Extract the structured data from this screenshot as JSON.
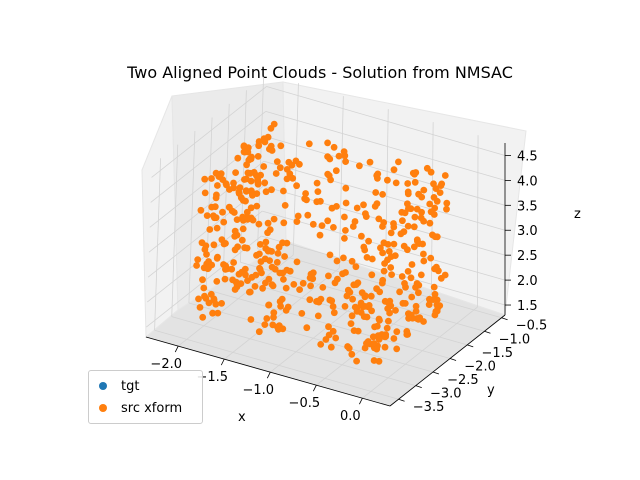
{
  "chart_data": {
    "type": "scatter",
    "title": "Two Aligned Point Clouds - Solution from NMSAC",
    "xlabel": "x",
    "ylabel": "y",
    "zlabel": "z",
    "x_ticks": [
      "−2.0",
      "−1.5",
      "−1.0",
      "−0.5",
      "0.0"
    ],
    "y_ticks": [
      "−3.5",
      "−3.0",
      "−2.5",
      "−2.0",
      "−1.5",
      "−1.0",
      "−0.5"
    ],
    "z_ticks": [
      "1.5",
      "2.0",
      "2.5",
      "3.0",
      "3.5",
      "4.0",
      "4.5"
    ],
    "x_tick_values": [
      -2.0,
      -1.5,
      -1.0,
      -0.5,
      0.0
    ],
    "y_tick_values": [
      -3.5,
      -3.0,
      -2.5,
      -2.0,
      -1.5,
      -1.0,
      -0.5
    ],
    "z_tick_values": [
      1.5,
      2.0,
      2.5,
      3.0,
      3.5,
      4.0,
      4.5
    ],
    "xlim": [
      -2.35,
      0.3
    ],
    "ylim": [
      -3.75,
      -0.4
    ],
    "zlim": [
      1.3,
      4.75
    ],
    "grid": true,
    "legend_position": "lower-left",
    "series": [
      {
        "name": "tgt",
        "color": "#1f77b4"
      },
      {
        "name": "src xform",
        "color": "#ff7f0e"
      }
    ],
    "point_count": 520
  }
}
